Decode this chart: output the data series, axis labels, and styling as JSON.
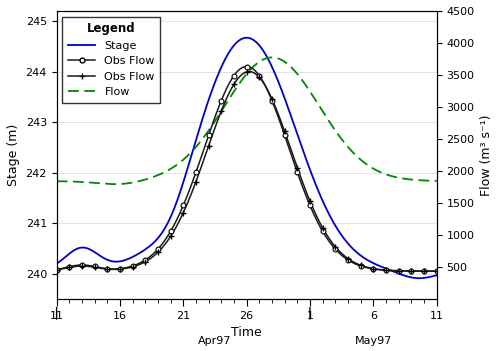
{
  "title": "",
  "xlabel": "Time",
  "ylabel_left": "Stage (m)",
  "ylabel_right": "Flow (m³ s⁻¹)",
  "ylim_left": [
    239.5,
    245.2
  ],
  "ylim_right": [
    0,
    4500
  ],
  "yticks_left": [
    240,
    241,
    242,
    243,
    244,
    245
  ],
  "yticks_right": [
    500,
    1000,
    1500,
    2000,
    2500,
    3000,
    3500,
    4000,
    4500
  ],
  "stage_color": "#0000cc",
  "obs_flow1_color": "#1a1a1a",
  "obs_flow2_color": "#1a1a1a",
  "flow_color": "#008800",
  "background": "#ffffff",
  "label_color": "#000000",
  "tick_label_color": "#000000"
}
